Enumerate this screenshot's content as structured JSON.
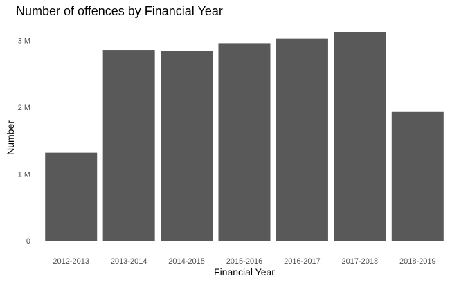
{
  "chart_data": {
    "type": "bar",
    "title": "Number of offences by Financial Year",
    "xlabel": "Financial Year",
    "ylabel": "Number",
    "categories": [
      "2012-2013",
      "2013-2014",
      "2014-2015",
      "2015-2016",
      "2016-2017",
      "2017-2018",
      "2018-2019"
    ],
    "values": [
      1320000,
      2860000,
      2840000,
      2960000,
      3030000,
      3130000,
      1930000
    ],
    "ylim": [
      0,
      3130000
    ],
    "yticks": [
      0,
      1000000,
      2000000,
      3000000
    ],
    "ytick_labels": [
      "0",
      "1 M",
      "2 M",
      "3 M"
    ],
    "grid": false,
    "legend": "none",
    "bar_color": "#595959"
  }
}
